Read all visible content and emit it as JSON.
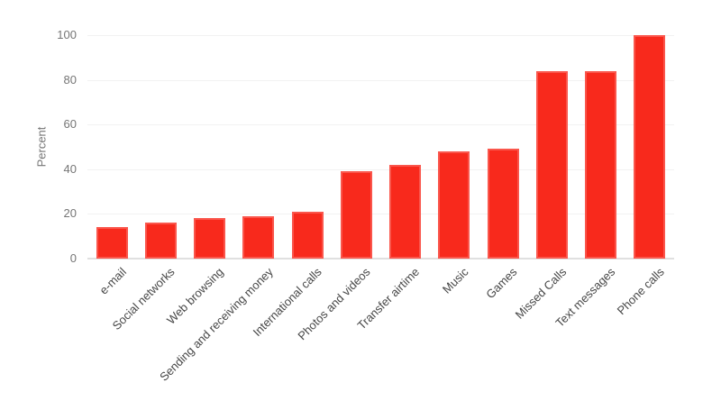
{
  "chart_data": {
    "type": "bar",
    "title": "",
    "xlabel": "",
    "ylabel": "Percent",
    "ylim": [
      0,
      100
    ],
    "yticks": [
      0,
      20,
      40,
      60,
      80,
      100
    ],
    "grid": "horizontal-light",
    "legend": "none",
    "categories": [
      "e-mail",
      "Social networks",
      "Web browsing",
      "Sending and receiving money",
      "International calls",
      "Photos and videos",
      "Transfer airtime",
      "Music",
      "Games",
      "Missed Calls",
      "Text messages",
      "Phone calls"
    ],
    "values": [
      14,
      16,
      18,
      19,
      21,
      39,
      42,
      48,
      49,
      84,
      84,
      100
    ]
  },
  "colors": {
    "bar_fill": "#f8291c",
    "bar_border": "#fa564c",
    "gridline": "#f2f2f2",
    "baseline": "#e0e0e0",
    "y_tick_text": "#757575",
    "axis_title_text": "#757575",
    "x_label_text": "#474747",
    "background": "#ffffff"
  }
}
